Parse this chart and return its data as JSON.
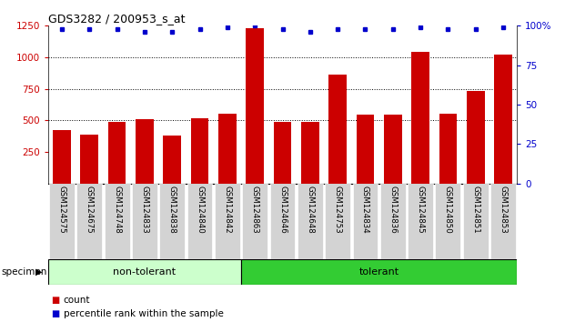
{
  "title": "GDS3282 / 200953_s_at",
  "categories": [
    "GSM124575",
    "GSM124675",
    "GSM124748",
    "GSM124833",
    "GSM124838",
    "GSM124840",
    "GSM124842",
    "GSM124863",
    "GSM124646",
    "GSM124648",
    "GSM124753",
    "GSM124834",
    "GSM124836",
    "GSM124845",
    "GSM124850",
    "GSM124851",
    "GSM124853"
  ],
  "bar_values": [
    420,
    390,
    490,
    510,
    380,
    515,
    550,
    1230,
    490,
    490,
    860,
    545,
    545,
    1040,
    555,
    730,
    1020
  ],
  "percentile_values": [
    98,
    98,
    98,
    96,
    96,
    98,
    99,
    100,
    98,
    96,
    98,
    98,
    98,
    99,
    98,
    98,
    99
  ],
  "group_labels": [
    "non-tolerant",
    "tolerant"
  ],
  "non_tolerant_count": 7,
  "tolerant_count": 10,
  "bar_color": "#cc0000",
  "dot_color": "#0000cc",
  "ylim_left": [
    0,
    1250
  ],
  "ylim_right": [
    0,
    100
  ],
  "yticks_left": [
    250,
    500,
    750,
    1000,
    1250
  ],
  "yticks_right": [
    0,
    25,
    50,
    75,
    100
  ],
  "grid_values": [
    500,
    750,
    1000
  ],
  "tick_label_bg": "#d3d3d3",
  "non_tolerant_bg": "#ccffcc",
  "tolerant_bg": "#33cc33",
  "bar_width": 0.65,
  "legend_count_label": "count",
  "legend_percentile_label": "percentile rank within the sample",
  "specimen_label": "specimen"
}
